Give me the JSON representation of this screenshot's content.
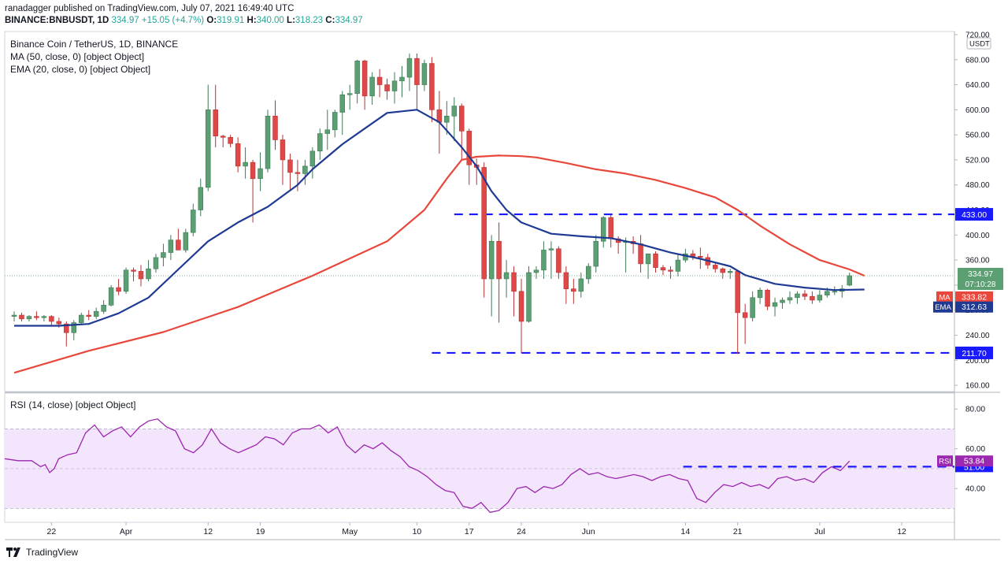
{
  "header": {
    "published": "ranadagger published on TradingView.com, July 07, 2021 16:49:40 UTC",
    "symbol": "BINANCE:BNBUSDT, 1D",
    "last": "334.97",
    "change": "+15.05 (+4.7%)",
    "o_label": "O:",
    "o": "319.91",
    "h_label": "H:",
    "h": "340.00",
    "l_label": "L:",
    "l": "318.23",
    "c_label": "C:",
    "c": "334.97"
  },
  "legend": {
    "title": "Binance Coin / TetherUS, 1D, BINANCE",
    "ma": "MA (50, close, 0) [object Object]",
    "ema": "EMA (20, close, 0) [object Object]",
    "rsi": "RSI (14, close) [object Object]"
  },
  "currency": "USDT",
  "footer": {
    "brand": "TradingView"
  },
  "colors": {
    "up": "#26a69a",
    "up_body": "#5b9f73",
    "down": "#e04848",
    "ma": "#e8473b",
    "ema": "#1f3a93",
    "level": "#1a1aff",
    "rsi": "#9c27b0",
    "rsi_band": "#f3e5fb",
    "price_tag": "#5b9f73"
  },
  "chart_data": [
    {
      "type": "candlestick",
      "title": "Binance Coin / TetherUS, 1D, BINANCE",
      "y_axis_ticks": [
        160,
        200,
        240,
        280,
        320,
        360,
        400,
        440,
        480,
        520,
        560,
        600,
        640,
        680,
        720
      ],
      "y_axis_tick_labels": [
        "160.00",
        "200.00",
        "240.00",
        "280.00",
        "320.00",
        "360.00",
        "400.00",
        "440.00",
        "480.00",
        "520.00",
        "560.00",
        "600.00",
        "640.00",
        "680.00",
        "720.00"
      ],
      "ylim": [
        150,
        725
      ],
      "x_axis_ticks": [
        "22",
        "Apr",
        "12",
        "19",
        "May",
        "10",
        "17",
        "24",
        "Jun",
        "14",
        "21",
        "Jul",
        "12"
      ],
      "x_tick_index": [
        5,
        15,
        26,
        33,
        45,
        54,
        61,
        68,
        77,
        90,
        97,
        108,
        119
      ],
      "xlim_index": [
        0,
        121
      ],
      "candles": [
        [
          270,
          278,
          262,
          272
        ],
        [
          272,
          276,
          262,
          266
        ],
        [
          266,
          272,
          262,
          270
        ],
        [
          270,
          278,
          264,
          268
        ],
        [
          268,
          272,
          262,
          270
        ],
        [
          270,
          272,
          256,
          262
        ],
        [
          262,
          268,
          252,
          258
        ],
        [
          258,
          262,
          222,
          244
        ],
        [
          244,
          264,
          232,
          260
        ],
        [
          260,
          276,
          256,
          272
        ],
        [
          272,
          280,
          264,
          270
        ],
        [
          270,
          284,
          266,
          278
        ],
        [
          278,
          296,
          274,
          288
        ],
        [
          288,
          320,
          286,
          316
        ],
        [
          316,
          330,
          304,
          310
        ],
        [
          310,
          348,
          306,
          344
        ],
        [
          344,
          348,
          326,
          342
        ],
        [
          342,
          352,
          318,
          330
        ],
        [
          330,
          360,
          326,
          346
        ],
        [
          346,
          370,
          340,
          364
        ],
        [
          364,
          386,
          350,
          372
        ],
        [
          372,
          400,
          360,
          392
        ],
        [
          392,
          410,
          376,
          376
        ],
        [
          376,
          410,
          372,
          404
        ],
        [
          404,
          450,
          398,
          440
        ],
        [
          440,
          490,
          430,
          476
        ],
        [
          476,
          640,
          470,
          600
        ],
        [
          600,
          640,
          540,
          558
        ],
        [
          558,
          560,
          540,
          556
        ],
        [
          556,
          560,
          540,
          546
        ],
        [
          546,
          556,
          500,
          510
        ],
        [
          510,
          540,
          490,
          516
        ],
        [
          516,
          520,
          420,
          490
        ],
        [
          490,
          532,
          470,
          506
        ],
        [
          506,
          600,
          500,
          590
        ],
        [
          590,
          615,
          536,
          552
        ],
        [
          552,
          560,
          480,
          520
        ],
        [
          520,
          530,
          470,
          500
        ],
        [
          500,
          520,
          470,
          498
        ],
        [
          498,
          520,
          480,
          510
        ],
        [
          510,
          540,
          490,
          534
        ],
        [
          534,
          570,
          520,
          562
        ],
        [
          562,
          600,
          536,
          568
        ],
        [
          568,
          600,
          556,
          596
        ],
        [
          596,
          630,
          560,
          624
        ],
        [
          624,
          640,
          600,
          626
        ],
        [
          626,
          680,
          610,
          678
        ],
        [
          678,
          680,
          600,
          622
        ],
        [
          622,
          660,
          608,
          652
        ],
        [
          652,
          665,
          620,
          640
        ],
        [
          640,
          650,
          616,
          630
        ],
        [
          630,
          660,
          610,
          646
        ],
        [
          646,
          670,
          620,
          652
        ],
        [
          652,
          690,
          630,
          682
        ],
        [
          682,
          690,
          600,
          640
        ],
        [
          640,
          680,
          630,
          674
        ],
        [
          674,
          684,
          580,
          600
        ],
        [
          600,
          630,
          530,
          580
        ],
        [
          580,
          614,
          560,
          590
        ],
        [
          590,
          620,
          550,
          606
        ],
        [
          606,
          610,
          520,
          566
        ],
        [
          566,
          570,
          480,
          512
        ],
        [
          512,
          522,
          480,
          508
        ],
        [
          508,
          516,
          300,
          330
        ],
        [
          330,
          400,
          270,
          390
        ],
        [
          390,
          420,
          260,
          330
        ],
        [
          330,
          360,
          300,
          340
        ],
        [
          340,
          350,
          270,
          310
        ],
        [
          310,
          330,
          211,
          262
        ],
        [
          262,
          350,
          260,
          340
        ],
        [
          340,
          350,
          330,
          344
        ],
        [
          344,
          390,
          330,
          376
        ],
        [
          376,
          390,
          330,
          378
        ],
        [
          378,
          382,
          330,
          340
        ],
        [
          340,
          350,
          290,
          314
        ],
        [
          314,
          330,
          290,
          310
        ],
        [
          310,
          340,
          300,
          330
        ],
        [
          330,
          355,
          322,
          350
        ],
        [
          350,
          400,
          340,
          390
        ],
        [
          390,
          430,
          380,
          428
        ],
        [
          428,
          432,
          380,
          394
        ],
        [
          394,
          398,
          370,
          388
        ],
        [
          388,
          396,
          340,
          390
        ],
        [
          390,
          398,
          370,
          386
        ],
        [
          386,
          400,
          340,
          354
        ],
        [
          354,
          370,
          330,
          370
        ],
        [
          370,
          374,
          340,
          348
        ],
        [
          348,
          352,
          336,
          344
        ],
        [
          344,
          350,
          330,
          342
        ],
        [
          342,
          370,
          334,
          360
        ],
        [
          360,
          378,
          356,
          370
        ],
        [
          370,
          376,
          360,
          366
        ],
        [
          366,
          380,
          346,
          364
        ],
        [
          364,
          370,
          346,
          352
        ],
        [
          352,
          356,
          340,
          346
        ],
        [
          346,
          348,
          330,
          340
        ],
        [
          340,
          346,
          330,
          342
        ],
        [
          342,
          344,
          210,
          276
        ],
        [
          276,
          290,
          226,
          268
        ],
        [
          268,
          310,
          262,
          300
        ],
        [
          300,
          316,
          290,
          312
        ],
        [
          312,
          314,
          280,
          286
        ],
        [
          286,
          300,
          270,
          292
        ],
        [
          292,
          300,
          282,
          296
        ],
        [
          296,
          310,
          290,
          300
        ],
        [
          300,
          310,
          290,
          306
        ],
        [
          306,
          312,
          296,
          302
        ],
        [
          302,
          310,
          290,
          296
        ],
        [
          296,
          312,
          292,
          304
        ],
        [
          304,
          316,
          300,
          310
        ],
        [
          310,
          318,
          304,
          310
        ],
        [
          310,
          320,
          300,
          314
        ],
        [
          319.91,
          340,
          318.23,
          334.97
        ]
      ],
      "series": [
        {
          "name": "MA (50, close, 0)",
          "last_label": "MA",
          "last": "333.82"
        },
        {
          "name": "EMA (20, close, 0)",
          "last_label": "EMA",
          "last": "312.63"
        }
      ],
      "ma50": [
        [
          0,
          180
        ],
        [
          10,
          215
        ],
        [
          20,
          245
        ],
        [
          30,
          285
        ],
        [
          40,
          335
        ],
        [
          50,
          390
        ],
        [
          55,
          440
        ],
        [
          58,
          490
        ],
        [
          60,
          520
        ],
        [
          62,
          525
        ],
        [
          65,
          527
        ],
        [
          68,
          526
        ],
        [
          70,
          524
        ],
        [
          74,
          515
        ],
        [
          78,
          505
        ],
        [
          82,
          498
        ],
        [
          86,
          488
        ],
        [
          90,
          475
        ],
        [
          94,
          460
        ],
        [
          97,
          440
        ],
        [
          100,
          415
        ],
        [
          104,
          385
        ],
        [
          108,
          360
        ],
        [
          112,
          345
        ],
        [
          114,
          335
        ]
      ],
      "ema20": [
        [
          0,
          255
        ],
        [
          6,
          255
        ],
        [
          10,
          258
        ],
        [
          14,
          275
        ],
        [
          18,
          300
        ],
        [
          22,
          345
        ],
        [
          26,
          390
        ],
        [
          30,
          420
        ],
        [
          34,
          445
        ],
        [
          38,
          480
        ],
        [
          40,
          505
        ],
        [
          44,
          545
        ],
        [
          47,
          570
        ],
        [
          50,
          595
        ],
        [
          54,
          600
        ],
        [
          57,
          580
        ],
        [
          60,
          540
        ],
        [
          62,
          510
        ],
        [
          64,
          470
        ],
        [
          66,
          440
        ],
        [
          68,
          420
        ],
        [
          72,
          402
        ],
        [
          76,
          398
        ],
        [
          80,
          395
        ],
        [
          84,
          385
        ],
        [
          88,
          372
        ],
        [
          92,
          362
        ],
        [
          96,
          350
        ],
        [
          98,
          336
        ],
        [
          102,
          322
        ],
        [
          106,
          316
        ],
        [
          110,
          312
        ],
        [
          114,
          313
        ]
      ],
      "levels": [
        {
          "label": "433.00",
          "value": 433,
          "from_index": 59
        },
        {
          "label": "211.70",
          "value": 211.7,
          "from_index": 56
        }
      ],
      "last_price_label": "334.97",
      "countdown": "07:10:28"
    },
    {
      "type": "line",
      "title": "RSI (14, close) [object Object]",
      "y_axis_ticks": [
        40,
        60,
        80
      ],
      "y_axis_tick_labels": [
        "40.00",
        "60.00",
        "80.00"
      ],
      "ylim": [
        23,
        88
      ],
      "band": [
        30,
        70
      ],
      "series": [
        {
          "name": "RSI",
          "last_label": "RSI",
          "last": "53.84"
        }
      ],
      "rsi": [
        [
          0,
          55
        ],
        [
          3,
          54
        ],
        [
          6,
          54
        ],
        [
          8,
          51
        ],
        [
          9,
          52
        ],
        [
          10,
          48
        ],
        [
          11,
          50
        ],
        [
          12,
          55
        ],
        [
          14,
          57
        ],
        [
          16,
          58
        ],
        [
          18,
          68
        ],
        [
          20,
          72
        ],
        [
          22,
          66
        ],
        [
          24,
          69
        ],
        [
          26,
          71
        ],
        [
          28,
          66
        ],
        [
          30,
          71
        ],
        [
          32,
          74
        ],
        [
          34,
          75
        ],
        [
          36,
          71
        ],
        [
          38,
          69
        ],
        [
          40,
          60
        ],
        [
          42,
          58
        ],
        [
          44,
          62
        ],
        [
          46,
          70
        ],
        [
          48,
          63
        ],
        [
          50,
          60
        ],
        [
          52,
          58
        ],
        [
          54,
          60
        ],
        [
          56,
          62
        ],
        [
          58,
          66
        ],
        [
          60,
          65
        ],
        [
          62,
          62
        ],
        [
          64,
          68
        ],
        [
          66,
          70
        ],
        [
          68,
          70
        ],
        [
          70,
          72
        ],
        [
          72,
          68
        ],
        [
          74,
          71
        ],
        [
          76,
          62
        ],
        [
          78,
          58
        ],
        [
          80,
          62
        ],
        [
          82,
          60
        ],
        [
          84,
          63
        ],
        [
          86,
          59
        ],
        [
          88,
          56
        ],
        [
          90,
          51
        ],
        [
          92,
          49
        ],
        [
          94,
          46
        ],
        [
          96,
          42
        ],
        [
          98,
          39
        ],
        [
          100,
          38
        ],
        [
          102,
          31
        ],
        [
          104,
          30
        ],
        [
          106,
          33
        ],
        [
          108,
          28
        ],
        [
          110,
          29
        ],
        [
          112,
          33
        ],
        [
          114,
          40
        ],
        [
          116,
          41
        ],
        [
          118,
          38
        ],
        [
          120,
          41
        ],
        [
          122,
          40
        ],
        [
          124,
          42
        ],
        [
          126,
          47
        ],
        [
          128,
          50
        ],
        [
          130,
          47
        ],
        [
          132,
          48
        ],
        [
          134,
          46
        ],
        [
          136,
          45
        ],
        [
          138,
          46
        ],
        [
          140,
          47
        ],
        [
          142,
          46
        ],
        [
          144,
          44
        ],
        [
          146,
          46
        ],
        [
          148,
          47
        ],
        [
          150,
          45
        ],
        [
          152,
          44
        ],
        [
          154,
          35
        ],
        [
          156,
          33
        ],
        [
          158,
          38
        ],
        [
          160,
          42
        ],
        [
          162,
          41
        ],
        [
          164,
          43
        ],
        [
          166,
          41
        ],
        [
          168,
          42
        ],
        [
          170,
          40
        ],
        [
          172,
          45
        ],
        [
          174,
          46
        ],
        [
          176,
          44
        ],
        [
          178,
          45
        ],
        [
          180,
          43
        ],
        [
          182,
          48
        ],
        [
          184,
          51
        ],
        [
          186,
          49
        ],
        [
          188,
          53.84
        ]
      ],
      "levels": [
        {
          "label": "51.00",
          "value": 51,
          "from_index": 151
        }
      ]
    }
  ]
}
